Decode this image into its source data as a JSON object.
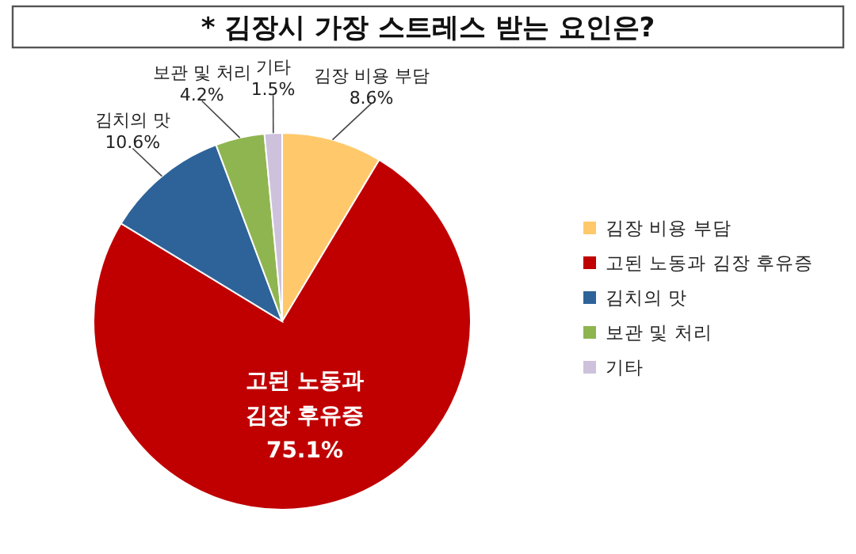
{
  "chart_data": {
    "type": "pie",
    "title": "* 김장시 가장 스트레스 받는 요인은?",
    "categories": [
      "김장 비용 부담",
      "고된 노동과 김장 후유증",
      "김치의 맛",
      "보관 및 처리",
      "기타"
    ],
    "values": [
      8.6,
      75.1,
      10.6,
      4.2,
      1.5
    ],
    "colors": [
      "#ffc96b",
      "#c00000",
      "#2e6399",
      "#8fb550",
      "#cdc1dc"
    ],
    "value_labels": [
      "8.6%",
      "75.1%",
      "10.6%",
      "4.2%",
      "1.5%"
    ],
    "legend": "right"
  }
}
